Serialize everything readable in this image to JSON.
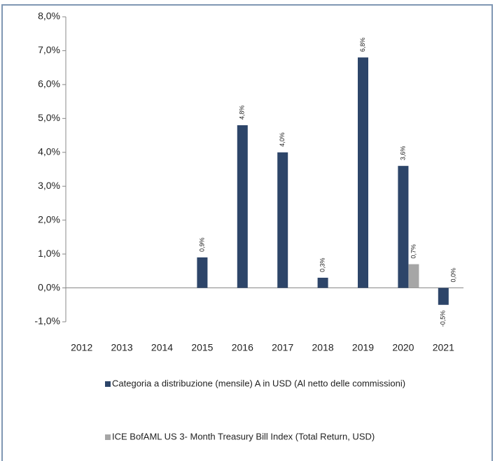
{
  "chart_data": {
    "type": "bar",
    "categories": [
      "2012",
      "2013",
      "2014",
      "2015",
      "2016",
      "2017",
      "2018",
      "2019",
      "2020",
      "2021"
    ],
    "series": [
      {
        "name": "Categoria a distribuzione (mensile) A in USD (Al netto delle commissioni)",
        "color": "#2d4569",
        "values": [
          null,
          null,
          null,
          0.9,
          4.8,
          4.0,
          0.3,
          6.8,
          3.6,
          -0.5
        ],
        "value_labels": [
          null,
          null,
          null,
          "0,9%",
          "4,8%",
          "4,0%",
          "0,3%",
          "6,8%",
          "3,6%",
          "-0,5%"
        ]
      },
      {
        "name": "ICE BofAML US 3- Month Treasury Bill Index (Total Return, USD)",
        "color": "#a6a6a6",
        "values": [
          null,
          null,
          null,
          null,
          null,
          null,
          null,
          null,
          0.7,
          0.0
        ],
        "value_labels": [
          null,
          null,
          null,
          null,
          null,
          null,
          null,
          null,
          "0,7%",
          "0,0%"
        ]
      }
    ],
    "ylim": [
      -1,
      8
    ],
    "yticks": [
      {
        "value": -1,
        "label": "-1,0%"
      },
      {
        "value": 0,
        "label": "0,0%"
      },
      {
        "value": 1,
        "label": "1,0%"
      },
      {
        "value": 2,
        "label": "2,0%"
      },
      {
        "value": 3,
        "label": "3,0%"
      },
      {
        "value": 4,
        "label": "4,0%"
      },
      {
        "value": 5,
        "label": "5,0%"
      },
      {
        "value": 6,
        "label": "6,0%"
      },
      {
        "value": 7,
        "label": "7,0%"
      },
      {
        "value": 8,
        "label": "8,0%"
      }
    ],
    "grid": false
  }
}
